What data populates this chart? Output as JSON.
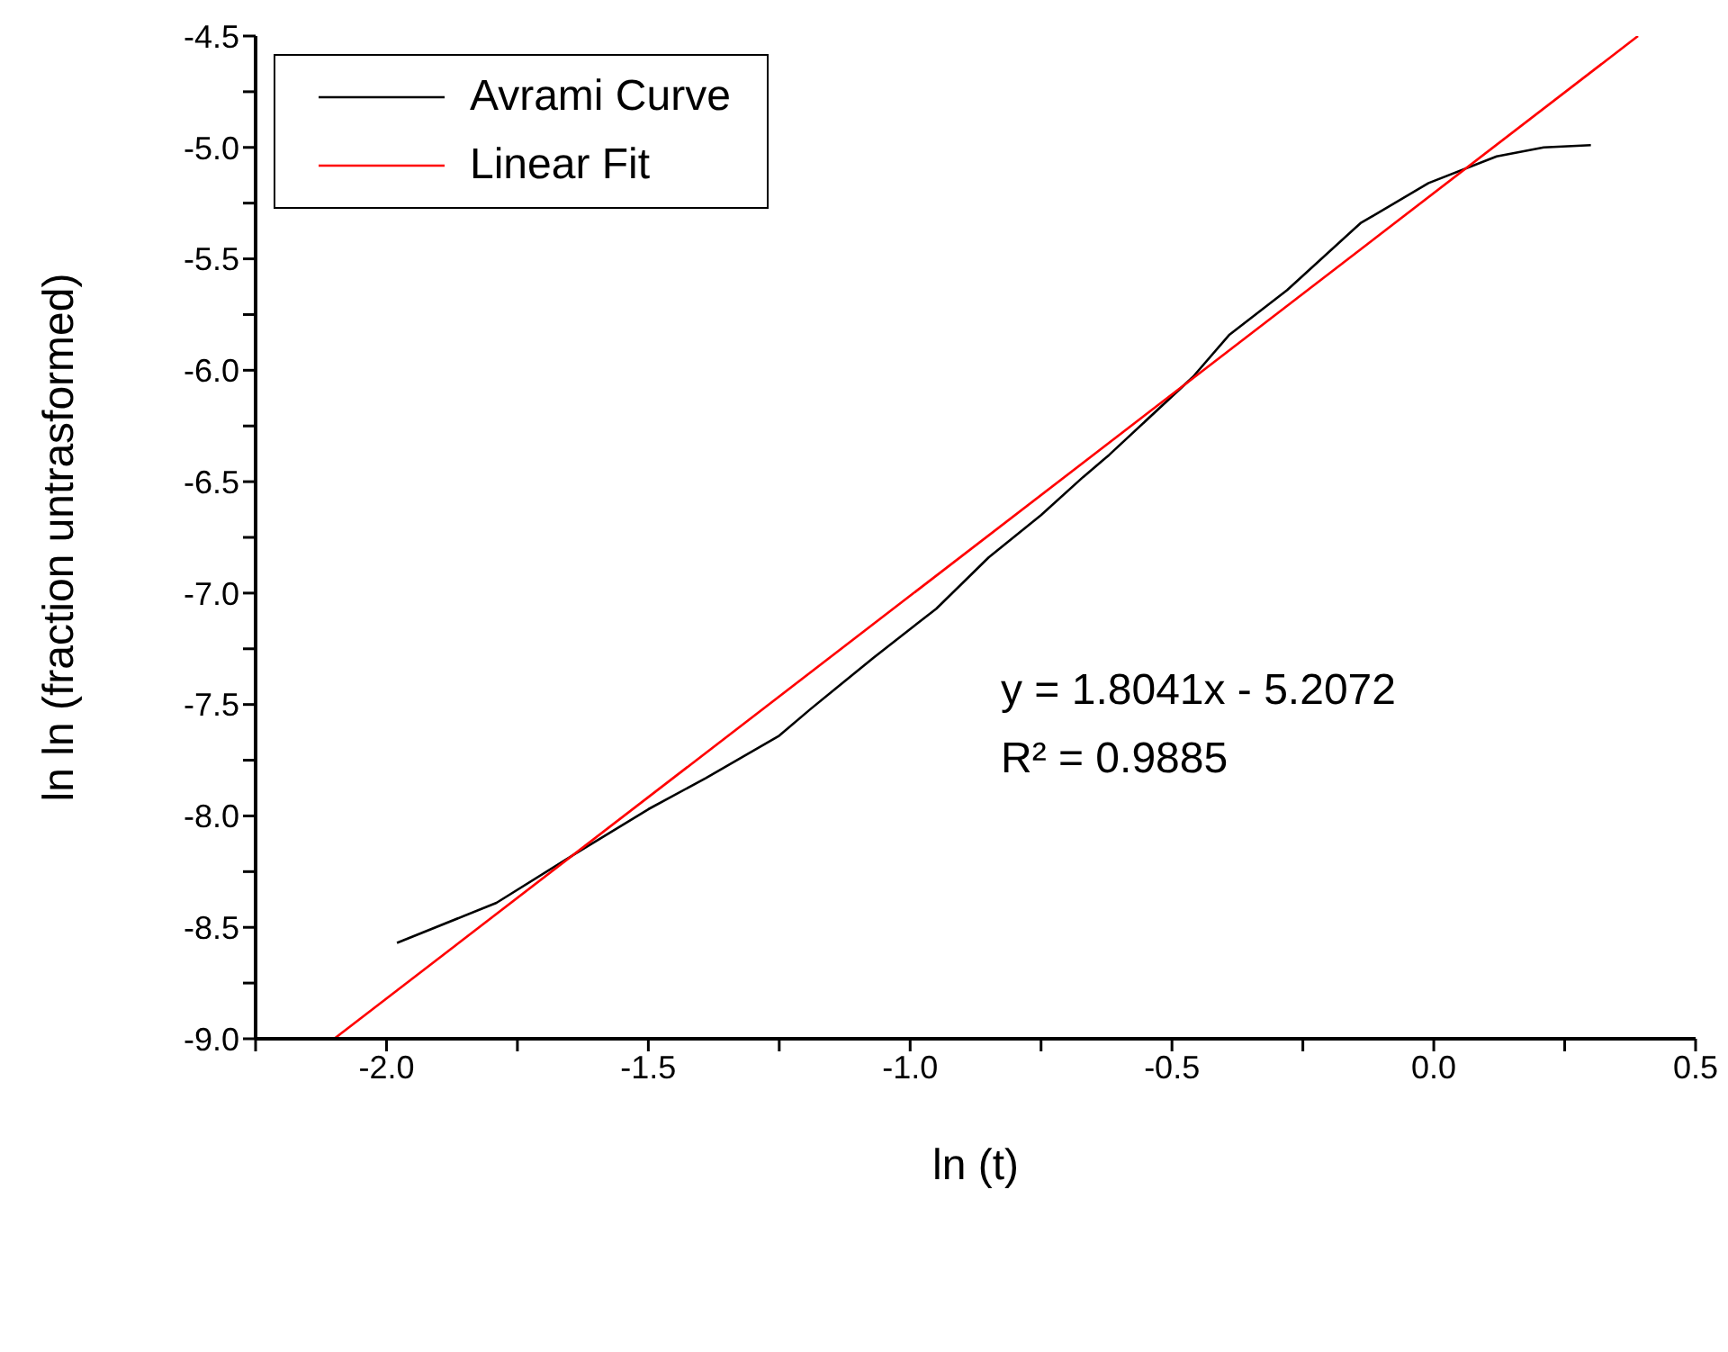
{
  "chart_data": {
    "type": "line",
    "xlabel": "ln (t)",
    "ylabel": "ln ln (fraction untrasformed)",
    "xlim": [
      -2.25,
      0.5
    ],
    "xticks": [
      {
        "value": -2.25,
        "label": null
      },
      {
        "value": -2,
        "label": "-2.0"
      },
      {
        "value": -1.75,
        "label": null
      },
      {
        "value": -1.5,
        "label": "-1.5"
      },
      {
        "value": -1.25,
        "label": null
      },
      {
        "value": -1,
        "label": "-1.0"
      },
      {
        "value": -0.75,
        "label": null
      },
      {
        "value": -0.5,
        "label": "-0.5"
      },
      {
        "value": -0.25,
        "label": null
      },
      {
        "value": 0,
        "label": "0.0"
      },
      {
        "value": 0.25,
        "label": null
      },
      {
        "value": 0.5,
        "label": "0.5"
      }
    ],
    "ylim": [
      -9,
      -4.5
    ],
    "yticks": [
      {
        "value": -9,
        "label": "-9.0"
      },
      {
        "value": -8.75,
        "label": null
      },
      {
        "value": -8.5,
        "label": "-8.5"
      },
      {
        "value": -8.25,
        "label": null
      },
      {
        "value": -8,
        "label": "-8.0"
      },
      {
        "value": -7.75,
        "label": null
      },
      {
        "value": -7.5,
        "label": "-7.5"
      },
      {
        "value": -7.25,
        "label": null
      },
      {
        "value": -7,
        "label": "-7.0"
      },
      {
        "value": -6.75,
        "label": null
      },
      {
        "value": -6.5,
        "label": "-6.5"
      },
      {
        "value": -6.25,
        "label": null
      },
      {
        "value": -6,
        "label": "-6.0"
      },
      {
        "value": -5.75,
        "label": null
      },
      {
        "value": -5.5,
        "label": "-5.5"
      },
      {
        "value": -5.25,
        "label": null
      },
      {
        "value": -5,
        "label": "-5.0"
      },
      {
        "value": -4.75,
        "label": null
      },
      {
        "value": -4.5,
        "label": "-4.5"
      }
    ],
    "series": [
      {
        "name": "Avrami Curve",
        "color": "#000000",
        "x": [
          -1.98,
          -1.79,
          -1.64,
          -1.57,
          -1.5,
          -1.39,
          -1.25,
          -1.19,
          -1.07,
          -0.95,
          -0.85,
          -0.75,
          -0.67,
          -0.62,
          -0.46,
          -0.39,
          -0.28,
          -0.14,
          -0.01,
          0.12,
          0.21,
          0.3
        ],
        "values": [
          -8.57,
          -8.39,
          -8.17,
          -8.07,
          -7.97,
          -7.83,
          -7.64,
          -7.52,
          -7.29,
          -7.07,
          -6.84,
          -6.65,
          -6.48,
          -6.38,
          -6.03,
          -5.84,
          -5.64,
          -5.34,
          -5.16,
          -5.04,
          -5.0,
          -4.99
        ]
      },
      {
        "name": "Linear Fit",
        "color": "#ff0000",
        "x": [
          -2.1,
          0.39
        ],
        "values": [
          -9.0,
          -4.5
        ]
      }
    ],
    "annotations": [
      "y = 1.8041x - 5.2072",
      "R² = 0.9885"
    ],
    "legend": "top left",
    "marker": "none",
    "line_style": "solid"
  }
}
